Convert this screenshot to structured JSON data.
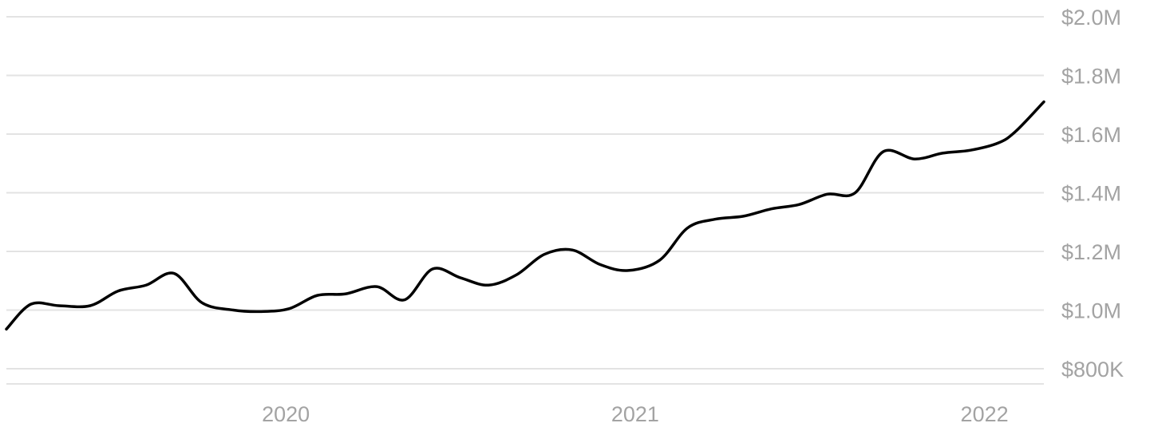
{
  "chart_data": {
    "type": "line",
    "title": "",
    "xlabel": "",
    "ylabel": "",
    "y_unit": "USD",
    "ylim": [
      760000,
      2000000
    ],
    "y_ticks": [
      {
        "value": 800000,
        "label": "$800K"
      },
      {
        "value": 1000000,
        "label": "$1.0M"
      },
      {
        "value": 1200000,
        "label": "$1.2M"
      },
      {
        "value": 1400000,
        "label": "$1.4M"
      },
      {
        "value": 1600000,
        "label": "$1.6M"
      },
      {
        "value": 1800000,
        "label": "$1.8M"
      },
      {
        "value": 2000000,
        "label": "$2.0M"
      }
    ],
    "xlim": [
      2019.2,
      2022.17
    ],
    "x_ticks": [
      {
        "value": 2020.0,
        "label": "2020"
      },
      {
        "value": 2021.0,
        "label": "2021"
      },
      {
        "value": 2022.0,
        "label": "2022"
      }
    ],
    "grid": true,
    "legend": "none",
    "line_color": "#000000",
    "grid_color": "#e3e3e3",
    "tick_color": "#a3a3a3",
    "series": [
      {
        "x": [
          2019.2,
          2019.27,
          2019.35,
          2019.44,
          2019.52,
          2019.6,
          2019.68,
          2019.76,
          2019.85,
          2019.93,
          2020.01,
          2020.09,
          2020.17,
          2020.26,
          2020.34,
          2020.42,
          2020.5,
          2020.58,
          2020.66,
          2020.74,
          2020.82,
          2020.9,
          2020.98,
          2021.07,
          2021.15,
          2021.23,
          2021.31,
          2021.39,
          2021.47,
          2021.55,
          2021.63,
          2021.71,
          2021.8,
          2021.88,
          2021.96,
          2022.04,
          2022.09,
          2022.17
        ],
        "y": [
          935000,
          1020000,
          1015000,
          1015000,
          1065000,
          1085000,
          1125000,
          1025000,
          1000000,
          995000,
          1005000,
          1050000,
          1055000,
          1080000,
          1035000,
          1140000,
          1110000,
          1085000,
          1120000,
          1190000,
          1205000,
          1155000,
          1135000,
          1170000,
          1280000,
          1310000,
          1320000,
          1345000,
          1360000,
          1395000,
          1400000,
          1540000,
          1515000,
          1535000,
          1545000,
          1570000,
          1610000,
          1710000
        ]
      }
    ]
  }
}
